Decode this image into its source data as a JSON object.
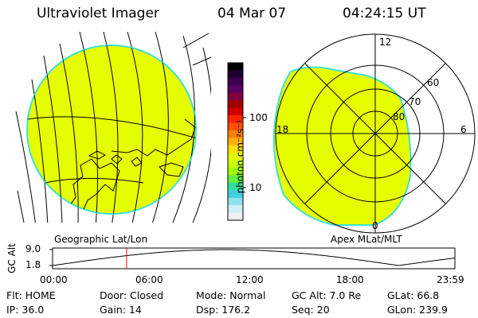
{
  "header": {
    "instrument": "Ultraviolet Imager",
    "date": "04 Mar 07",
    "time": "04:24:15 UT"
  },
  "colorbar": {
    "unit_label": "photon cm⁻²s⁻¹",
    "ticks": [
      "100",
      "10"
    ],
    "colors": [
      "#000000",
      "#1c0030",
      "#3c004c",
      "#5a0060",
      "#800040",
      "#a00000",
      "#d00000",
      "#ff2000",
      "#ff5000",
      "#ff8000",
      "#ffb000",
      "#ffe000",
      "#e0ff00",
      "#c8ff00",
      "#a0ff00",
      "#60f040",
      "#30e0a0",
      "#40d0e0",
      "#90e0f0",
      "#d0f0f8",
      "#f0f0f0"
    ]
  },
  "geographic_view": {
    "label": "Geographic Lat/Lon",
    "fill_color": "#e6ff00",
    "edge_color": "#40e0d0"
  },
  "apex_view": {
    "label": "Apex MLat/MLT",
    "mlt_labels": {
      "top": "12",
      "left": "18",
      "right": "6",
      "bottom": "0"
    },
    "mlat_labels": [
      "60",
      "70",
      "80"
    ]
  },
  "altitude_plot": {
    "ylabel": "GC Alt",
    "yticks": [
      "9.0",
      "1.8"
    ],
    "xticks": [
      "00:00",
      "06:00",
      "12:00",
      "18:00",
      "23:59"
    ],
    "current_time_fraction": 0.184
  },
  "status": {
    "row1": {
      "flt": "Flt: HOME",
      "door": "Door: Closed",
      "mode": "Mode: Normal",
      "gc_alt": "GC Alt: 7.0 Re",
      "glat": "GLat:  66.8"
    },
    "row2": {
      "ip": "IP: 36.0",
      "gain": "Gain: 14",
      "dsp": "Dsp:  176.2",
      "seq": "Seq: 20",
      "glon": "GLon: 239.9"
    }
  }
}
